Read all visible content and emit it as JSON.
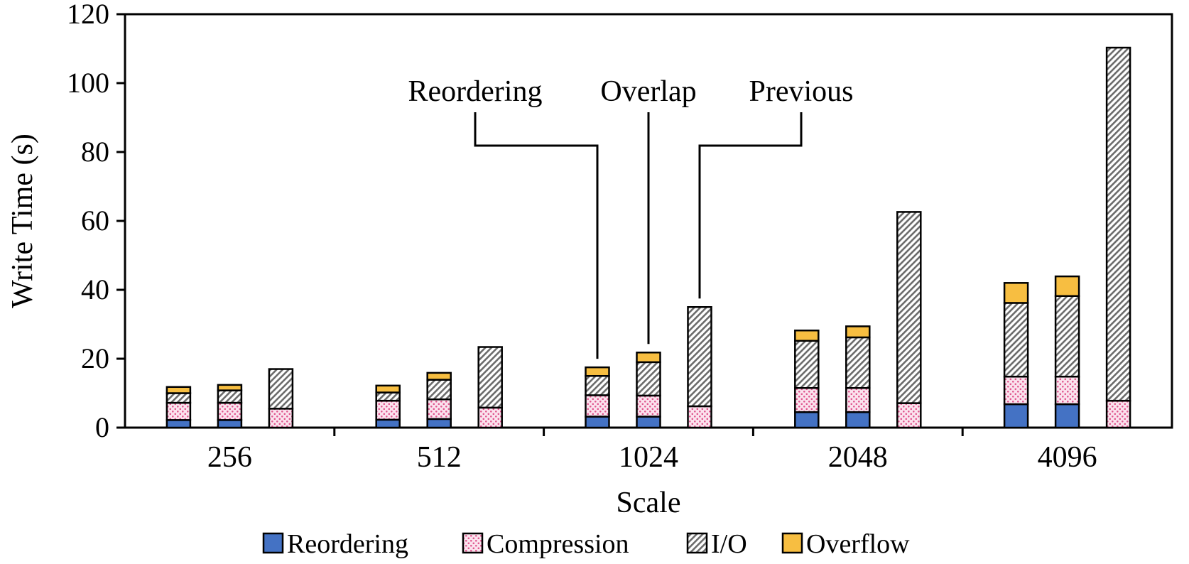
{
  "chart_data": {
    "type": "stacked-bar",
    "title": "",
    "xlabel": "Scale",
    "ylabel": "Write Time (s)",
    "ylim": [
      0,
      120
    ],
    "yticks": [
      0,
      20,
      40,
      60,
      80,
      100,
      120
    ],
    "categories": [
      "256",
      "512",
      "1024",
      "2048",
      "4096"
    ],
    "methods": [
      "Reordering",
      "Overlap",
      "Previous"
    ],
    "segments": [
      "Reordering",
      "Compression",
      "I/O",
      "Overflow"
    ],
    "bars": [
      [
        {
          "Reordering": 2.2,
          "Compression": 5.0,
          "I/O": 2.8,
          "Overflow": 1.8
        },
        {
          "Reordering": 2.2,
          "Compression": 5.0,
          "I/O": 3.6,
          "Overflow": 1.6
        },
        {
          "Reordering": 0,
          "Compression": 5.5,
          "I/O": 11.5,
          "Overflow": 0
        }
      ],
      [
        {
          "Reordering": 2.3,
          "Compression": 5.5,
          "I/O": 2.4,
          "Overflow": 2.0
        },
        {
          "Reordering": 2.5,
          "Compression": 5.7,
          "I/O": 5.7,
          "Overflow": 2.0
        },
        {
          "Reordering": 0,
          "Compression": 5.8,
          "I/O": 17.6,
          "Overflow": 0
        }
      ],
      [
        {
          "Reordering": 3.2,
          "Compression": 6.2,
          "I/O": 5.6,
          "Overflow": 2.5
        },
        {
          "Reordering": 3.2,
          "Compression": 6.1,
          "I/O": 9.7,
          "Overflow": 2.8
        },
        {
          "Reordering": 0,
          "Compression": 6.2,
          "I/O": 28.8,
          "Overflow": 0
        }
      ],
      [
        {
          "Reordering": 4.5,
          "Compression": 7.0,
          "I/O": 13.7,
          "Overflow": 3.0
        },
        {
          "Reordering": 4.5,
          "Compression": 7.0,
          "I/O": 14.7,
          "Overflow": 3.2
        },
        {
          "Reordering": 0,
          "Compression": 7.1,
          "I/O": 55.5,
          "Overflow": 0
        }
      ],
      [
        {
          "Reordering": 6.8,
          "Compression": 8.0,
          "I/O": 21.4,
          "Overflow": 5.8
        },
        {
          "Reordering": 6.8,
          "Compression": 8.0,
          "I/O": 23.4,
          "Overflow": 5.7
        },
        {
          "Reordering": 0,
          "Compression": 7.8,
          "I/O": 102.5,
          "Overflow": 0
        }
      ]
    ],
    "callouts": [
      {
        "label": "Reordering",
        "category": "1024",
        "method": "Reordering"
      },
      {
        "label": "Overlap",
        "category": "1024",
        "method": "Overlap"
      },
      {
        "label": "Previous",
        "category": "1024",
        "method": "Previous"
      }
    ],
    "legend": {
      "position": "bottom",
      "items": [
        {
          "label": "Reordering",
          "style": "solid",
          "color": "#4472C4"
        },
        {
          "label": "Compression",
          "style": "dots",
          "color": "#F4A6C8"
        },
        {
          "label": "I/O",
          "style": "diagonal-hatch",
          "color": "#666666"
        },
        {
          "label": "Overflow",
          "style": "solid",
          "color": "#F7BE41"
        }
      ]
    },
    "grid": false
  }
}
